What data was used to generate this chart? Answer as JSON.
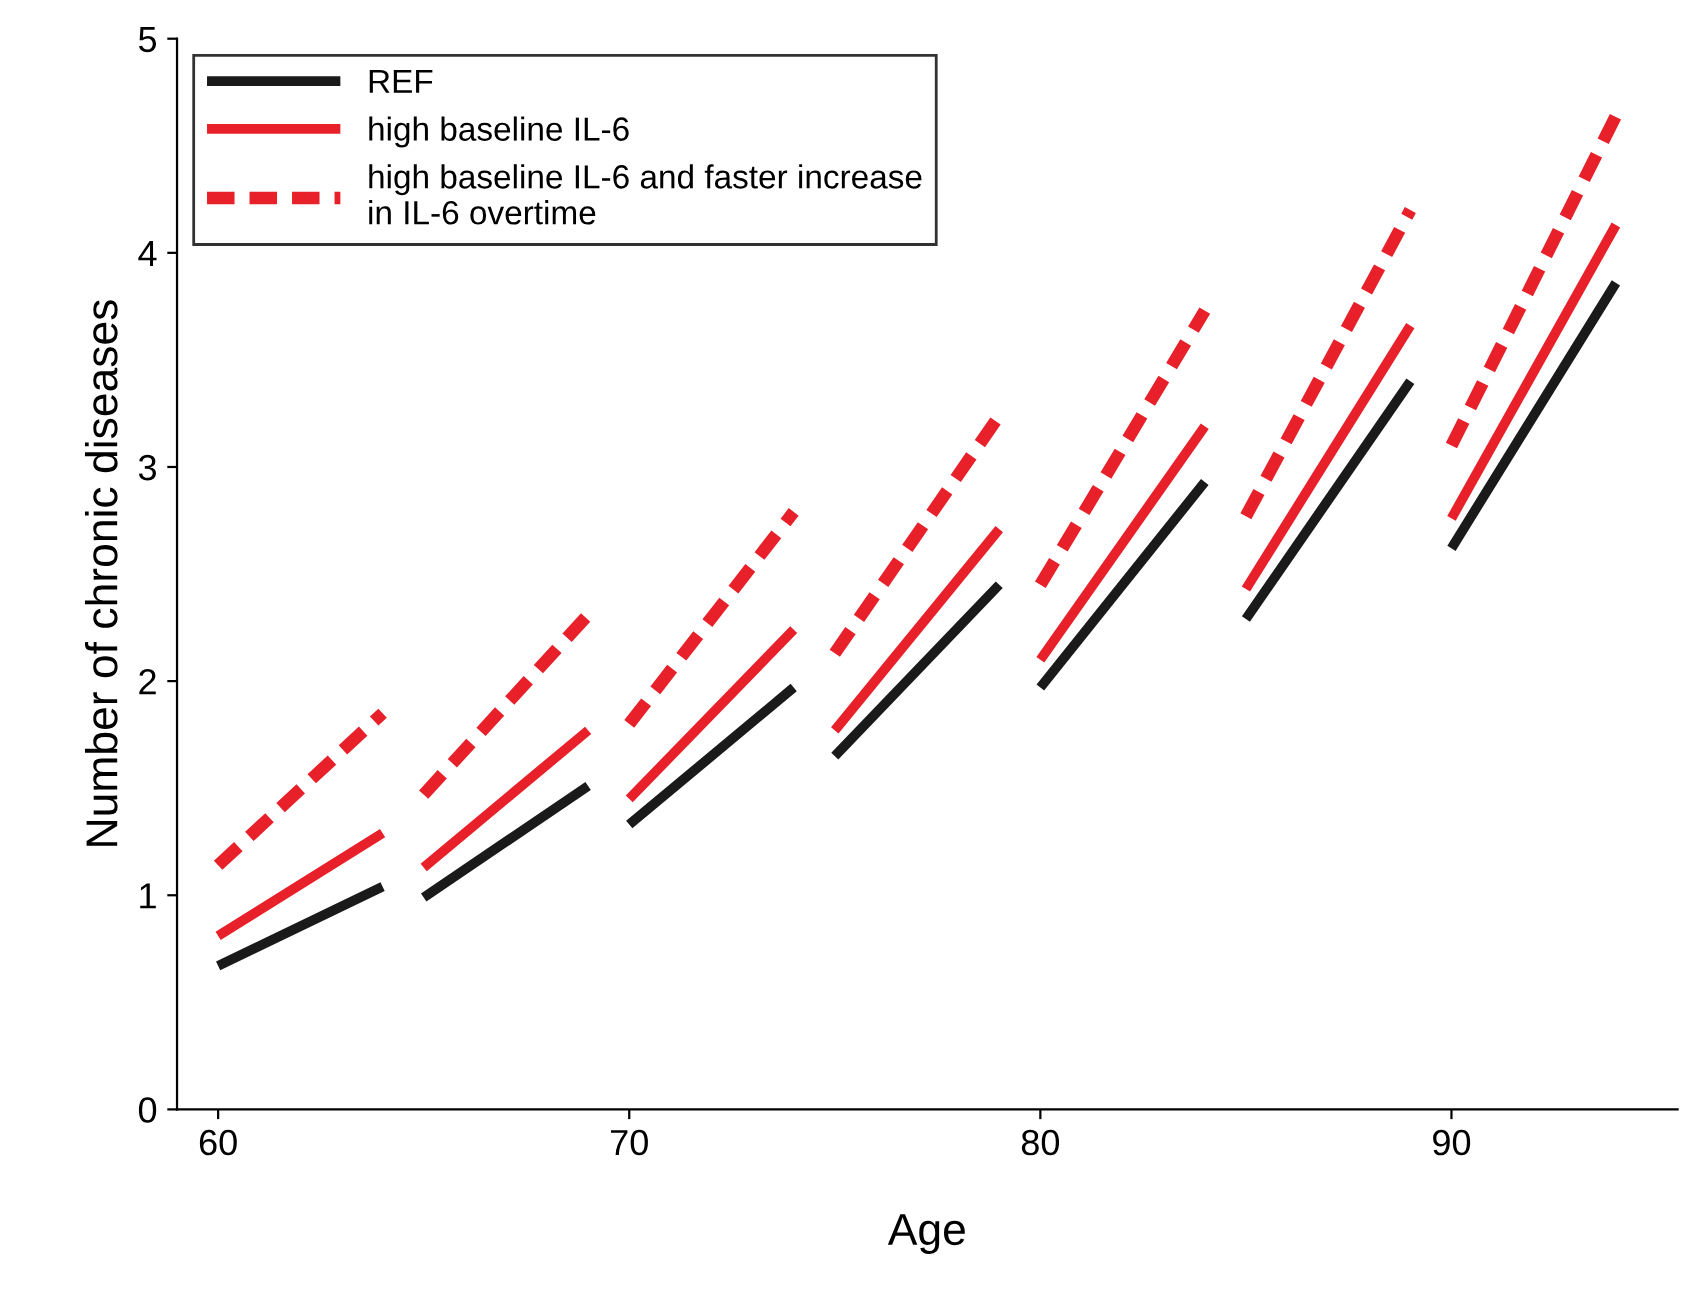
{
  "chart_data": {
    "type": "line",
    "xlabel": "Age",
    "ylabel": "Number of chronic diseases",
    "x": [
      60,
      64,
      null,
      65,
      69,
      null,
      70,
      74,
      null,
      75,
      79,
      null,
      80,
      84,
      null,
      85,
      89,
      null,
      90,
      94
    ],
    "series": [
      {
        "name": "REF",
        "color": "#1a1a1a",
        "line_style": "solid",
        "values": [
          0.67,
          1.04,
          null,
          0.99,
          1.51,
          null,
          1.33,
          1.97,
          null,
          1.65,
          2.45,
          null,
          1.97,
          2.93,
          null,
          2.29,
          3.4,
          null,
          2.62,
          3.86
        ]
      },
      {
        "name": "high baseline IL-6",
        "color": "#e8202a",
        "line_style": "solid",
        "values": [
          0.81,
          1.29,
          null,
          1.13,
          1.77,
          null,
          1.45,
          2.24,
          null,
          1.77,
          2.71,
          null,
          2.1,
          3.19,
          null,
          2.43,
          3.66,
          null,
          2.76,
          4.13
        ]
      },
      {
        "name": "high baseline IL-6 and faster increase\nin IL-6 overtime",
        "color": "#e8202a",
        "line_style": "dashed",
        "values": [
          1.14,
          1.85,
          null,
          1.47,
          2.31,
          null,
          1.8,
          2.79,
          null,
          2.13,
          3.24,
          null,
          2.45,
          3.73,
          null,
          2.77,
          4.2,
          null,
          3.1,
          4.64
        ]
      }
    ],
    "xlim": [
      59,
      95.5
    ],
    "ylim": [
      0,
      5
    ],
    "xticks": [
      60,
      70,
      80,
      90
    ],
    "yticks": [
      0,
      1,
      2,
      3,
      4,
      5
    ],
    "grid": false,
    "legend": "top left",
    "marker": "none"
  }
}
